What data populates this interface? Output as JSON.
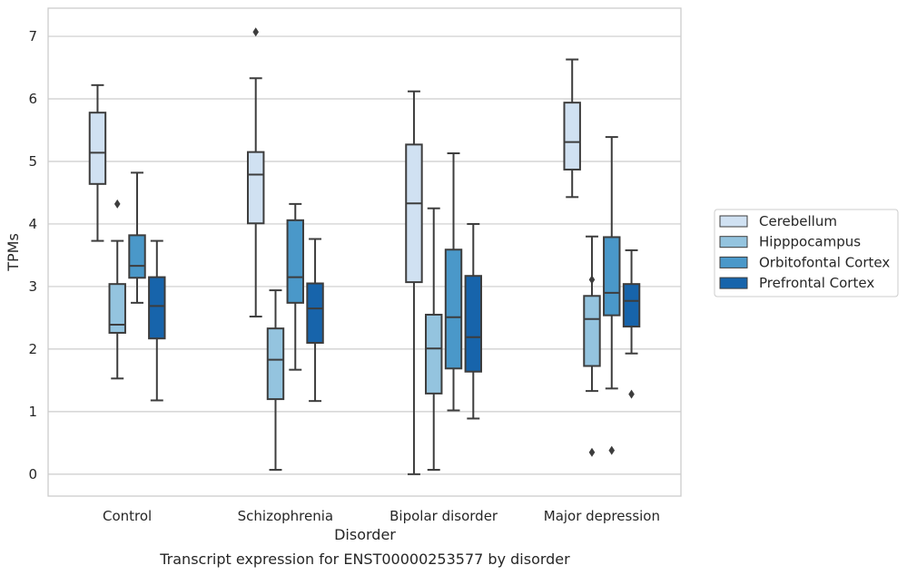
{
  "chart_data": {
    "type": "box",
    "caption": "Transcript expression for ENST00000253577 by disorder",
    "xlabel": "Disorder",
    "ylabel": "TPMs",
    "ylim": [
      -0.35,
      7.45
    ],
    "yticks": [
      "0",
      "1",
      "2",
      "3",
      "4",
      "5",
      "6",
      "7"
    ],
    "grid": "horizontal",
    "legend_position": "right",
    "categories": [
      "Control",
      "Schizophrenia",
      "Bipolar disorder",
      "Major depression"
    ],
    "series": [
      {
        "name": "Cerebellum",
        "color": "#d0e1f2",
        "boxes": [
          {
            "whislo": 3.73,
            "q1": 4.64,
            "med": 5.14,
            "q3": 5.78,
            "whishi": 6.22,
            "fliers": []
          },
          {
            "whislo": 2.52,
            "q1": 4.01,
            "med": 4.79,
            "q3": 5.15,
            "whishi": 6.33,
            "fliers": [
              7.07
            ]
          },
          {
            "whislo": 0.0,
            "q1": 3.07,
            "med": 4.33,
            "q3": 5.27,
            "whishi": 6.12,
            "fliers": []
          },
          {
            "whislo": 4.43,
            "q1": 4.87,
            "med": 5.31,
            "q3": 5.94,
            "whishi": 6.63,
            "fliers": []
          }
        ]
      },
      {
        "name": "Hipppocampus",
        "color": "#94c4df",
        "boxes": [
          {
            "whislo": 1.53,
            "q1": 2.26,
            "med": 2.39,
            "q3": 3.04,
            "whishi": 3.73,
            "fliers": [
              4.32
            ]
          },
          {
            "whislo": 0.07,
            "q1": 1.2,
            "med": 1.83,
            "q3": 2.33,
            "whishi": 2.94,
            "fliers": []
          },
          {
            "whislo": 0.07,
            "q1": 1.29,
            "med": 2.01,
            "q3": 2.55,
            "whishi": 4.25,
            "fliers": []
          },
          {
            "whislo": 1.33,
            "q1": 1.73,
            "med": 2.48,
            "q3": 2.85,
            "whishi": 3.8,
            "fliers": [
              3.11,
              0.35
            ]
          }
        ]
      },
      {
        "name": "Orbitofontal Cortex",
        "color": "#4a98c9",
        "boxes": [
          {
            "whislo": 2.74,
            "q1": 3.14,
            "med": 3.33,
            "q3": 3.82,
            "whishi": 4.82,
            "fliers": []
          },
          {
            "whislo": 1.67,
            "q1": 2.74,
            "med": 3.15,
            "q3": 4.06,
            "whishi": 4.32,
            "fliers": []
          },
          {
            "whislo": 1.02,
            "q1": 1.69,
            "med": 2.51,
            "q3": 3.59,
            "whishi": 5.13,
            "fliers": []
          },
          {
            "whislo": 1.37,
            "q1": 2.54,
            "med": 2.9,
            "q3": 3.79,
            "whishi": 5.39,
            "fliers": [
              0.38
            ]
          }
        ]
      },
      {
        "name": "Prefrontal Cortex",
        "color": "#1764ab",
        "boxes": [
          {
            "whislo": 1.18,
            "q1": 2.17,
            "med": 2.69,
            "q3": 3.15,
            "whishi": 3.73,
            "fliers": []
          },
          {
            "whislo": 1.17,
            "q1": 2.1,
            "med": 2.65,
            "q3": 3.05,
            "whishi": 3.76,
            "fliers": []
          },
          {
            "whislo": 0.89,
            "q1": 1.64,
            "med": 2.19,
            "q3": 3.17,
            "whishi": 4.0,
            "fliers": []
          },
          {
            "whislo": 1.93,
            "q1": 2.36,
            "med": 2.77,
            "q3": 3.04,
            "whishi": 3.58,
            "fliers": [
              1.28
            ]
          }
        ]
      }
    ]
  }
}
